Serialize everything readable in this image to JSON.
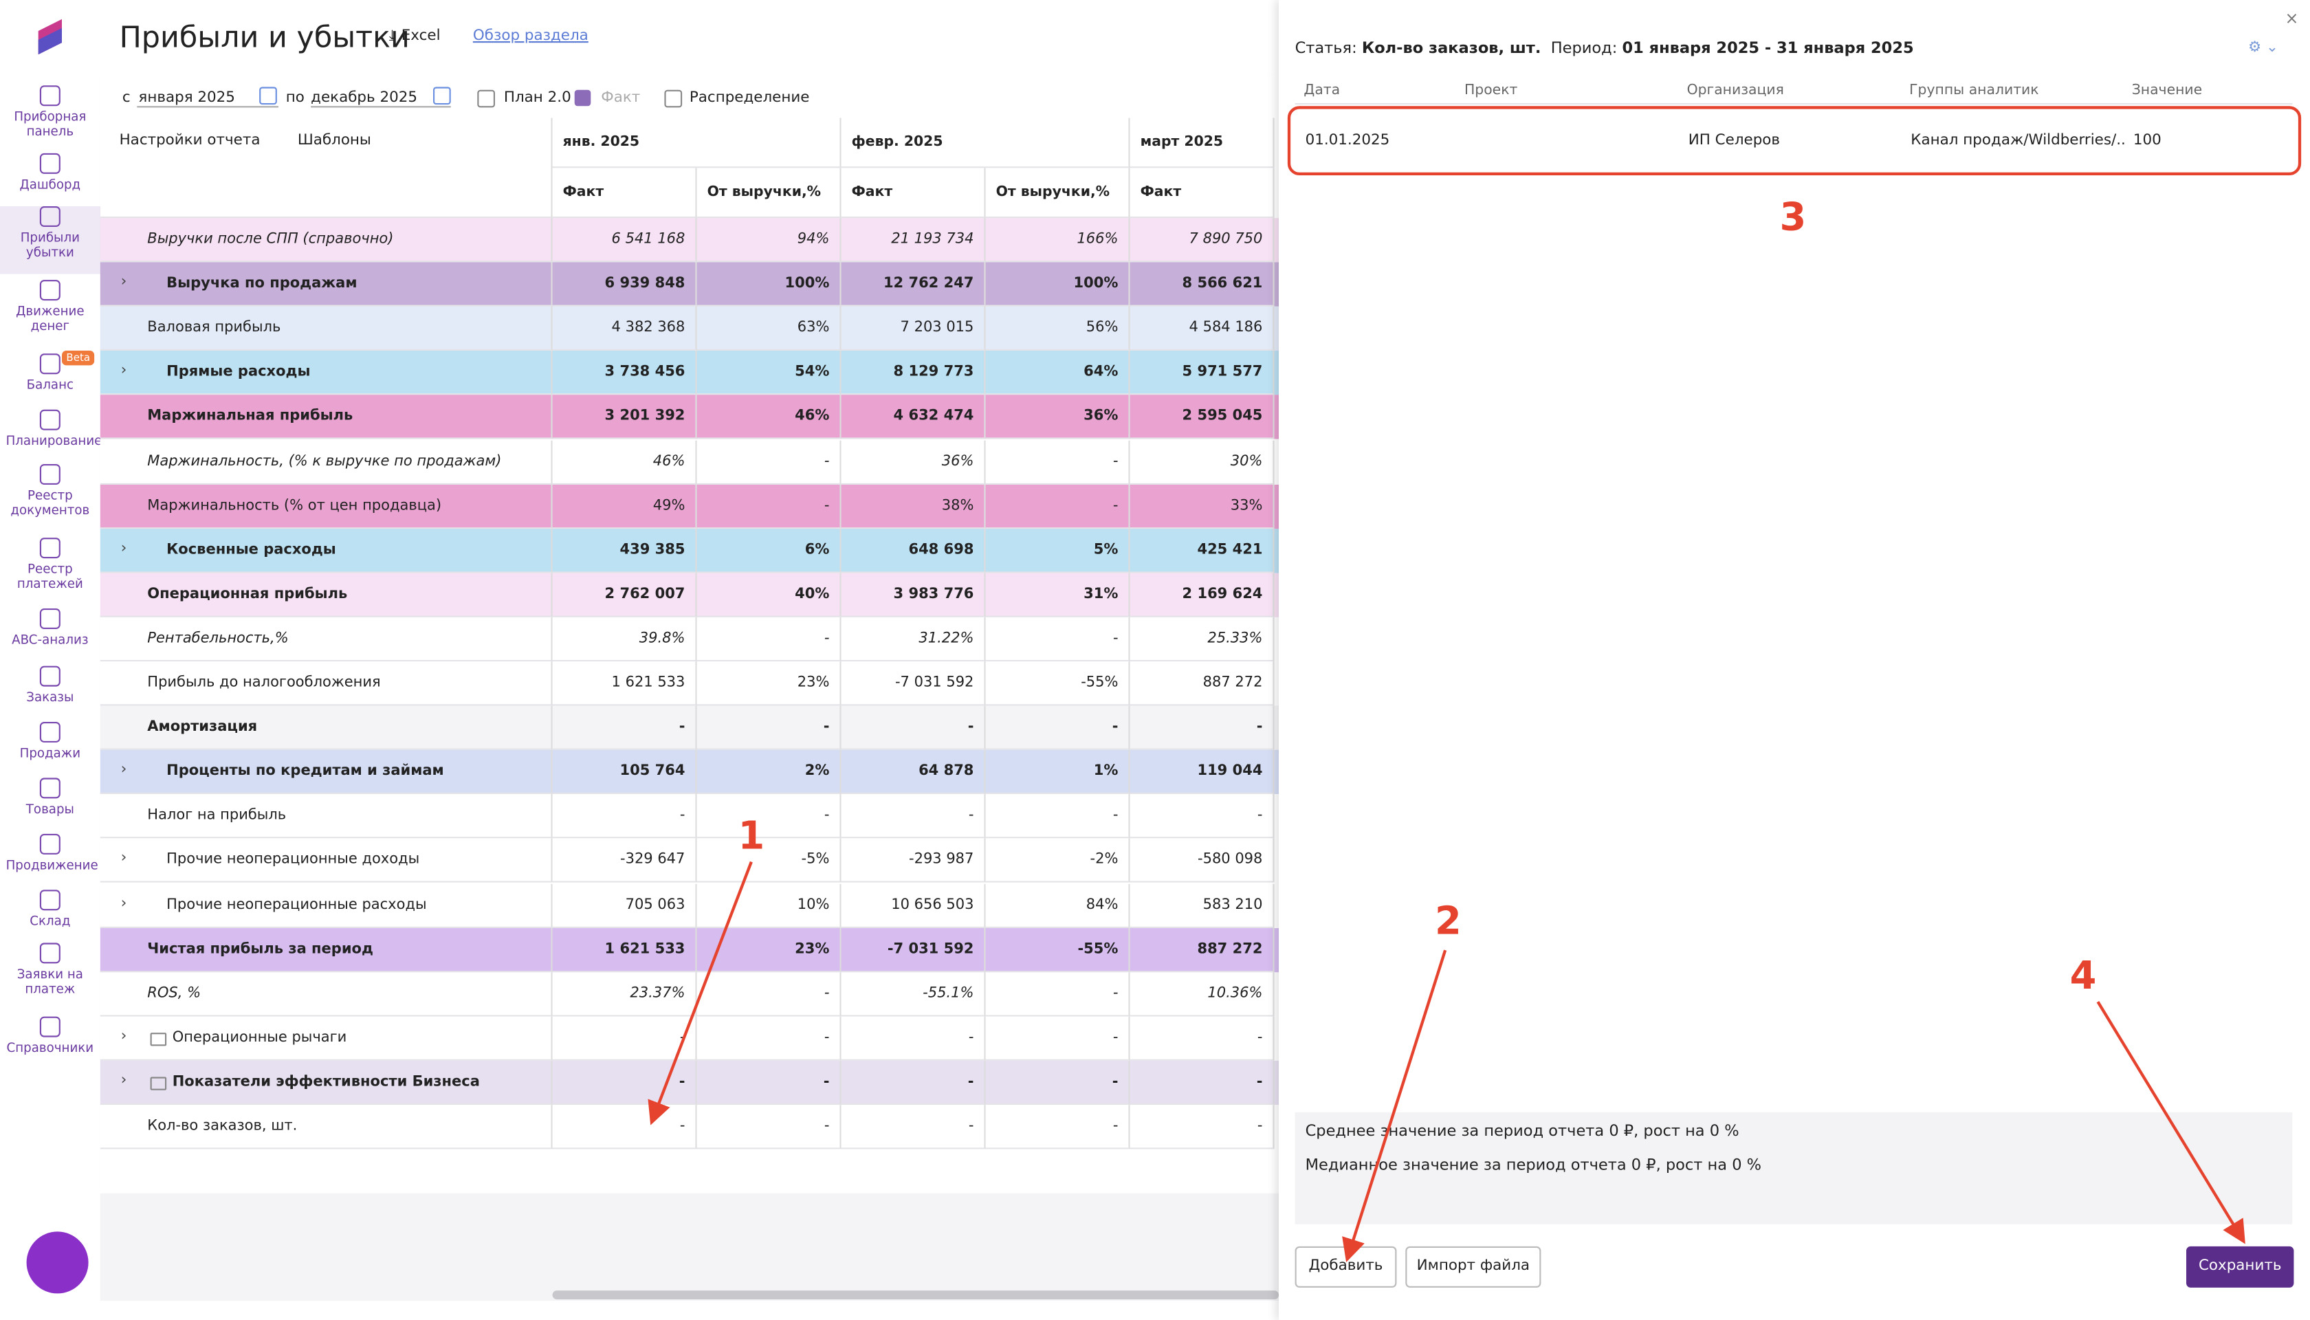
{
  "sidebar": {
    "items": [
      "Приборная панель",
      "Дашборд",
      "Прибыли убытки",
      "Движение денег",
      "Баланс",
      "Планирование",
      "Реестр документов",
      "Реестр платежей",
      "ABC-анализ",
      "Заказы",
      "Продажи",
      "Товары",
      "Продвижение",
      "Склад",
      "Заявки на платеж",
      "Справочники"
    ],
    "active": 2,
    "badge": "Beta",
    "badge_item": 4
  },
  "header": {
    "title": "Прибыли и убытки",
    "excel": "Excel",
    "overview": "Обзор раздела"
  },
  "filters": {
    "from_prefix": "с",
    "from": "января 2025",
    "to_prefix": "по",
    "to": "декабрь 2025",
    "plan": "План 2.0",
    "fact": "Факт",
    "distribution": "Распределение"
  },
  "toolbar": {
    "settings": "Настройки отчета",
    "templates": "Шаблоны"
  },
  "table": {
    "months": [
      "янв. 2025",
      "февр. 2025",
      "март 2025"
    ],
    "subheaders": [
      "Факт",
      "От выручки,%",
      "Факт",
      "От выручки,%",
      "Факт"
    ],
    "rows": [
      {
        "label": "Выручки после СПП (справочно)",
        "style": "italic",
        "bg": "#f7e1f4",
        "cells": [
          "6 541 168",
          "94%",
          "21 193 734",
          "166%",
          "7 890 750"
        ]
      },
      {
        "label": "Выручка по продажам",
        "style": "bold",
        "expand": true,
        "bg": "#c6afd8",
        "cells": [
          "6 939 848",
          "100%",
          "12 762 247",
          "100%",
          "8 566 621"
        ]
      },
      {
        "label": "Валовая прибыль",
        "style": "normal",
        "bg": "#e3eaf8",
        "cells": [
          "4 382 368",
          "63%",
          "7 203 015",
          "56%",
          "4 584 186"
        ]
      },
      {
        "label": "Прямые расходы",
        "style": "bold",
        "expand": true,
        "bg": "#bbe1f3",
        "cells": [
          "3 738 456",
          "54%",
          "8 129 773",
          "64%",
          "5 971 577"
        ]
      },
      {
        "label": "Маржинальная прибыль",
        "style": "bold",
        "bg": "#eaa2d1",
        "cells": [
          "3 201 392",
          "46%",
          "4 632 474",
          "36%",
          "2 595 045"
        ]
      },
      {
        "label": "Маржинальность, (% к выручке по продажам)",
        "style": "italic",
        "bg": "#ffffff",
        "cells": [
          "46%",
          "-",
          "36%",
          "-",
          "30%"
        ]
      },
      {
        "label": "Маржинальность (% от цен продавца)",
        "style": "normal",
        "bg": "#eaa2d1",
        "cells": [
          "49%",
          "-",
          "38%",
          "-",
          "33%"
        ]
      },
      {
        "label": "Косвенные расходы",
        "style": "bold",
        "expand": true,
        "bg": "#bbe1f3",
        "cells": [
          "439 385",
          "6%",
          "648 698",
          "5%",
          "425 421"
        ]
      },
      {
        "label": "Операционная прибыль",
        "style": "bold",
        "bg": "#f7e1f4",
        "cells": [
          "2 762 007",
          "40%",
          "3 983 776",
          "31%",
          "2 169 624"
        ]
      },
      {
        "label": "Рентабельность,%",
        "style": "italic",
        "bg": "#ffffff",
        "cells": [
          "39.8%",
          "-",
          "31.22%",
          "-",
          "25.33%"
        ]
      },
      {
        "label": "Прибыль до налогообложения",
        "style": "normal",
        "bg": "#ffffff",
        "cells": [
          "1 621 533",
          "23%",
          "-7 031 592",
          "-55%",
          "887 272"
        ]
      },
      {
        "label": "Амортизация",
        "style": "bold",
        "bg": "#f4f4f6",
        "cells": [
          "-",
          "-",
          "-",
          "-",
          "-"
        ]
      },
      {
        "label": "Проценты по кредитам и займам",
        "style": "bold",
        "expand": true,
        "bg": "#d5ddf4",
        "cells": [
          "105 764",
          "2%",
          "64 878",
          "1%",
          "119 044"
        ]
      },
      {
        "label": "Налог на прибыль",
        "style": "normal",
        "bg": "#ffffff",
        "cells": [
          "-",
          "-",
          "-",
          "-",
          "-"
        ]
      },
      {
        "label": "Прочие неоперационные доходы",
        "style": "normal",
        "expand": true,
        "bg": "#ffffff",
        "cells": [
          "-329 647",
          "-5%",
          "-293 987",
          "-2%",
          "-580 098"
        ]
      },
      {
        "label": "Прочие неоперационные расходы",
        "style": "normal",
        "expand": true,
        "bg": "#ffffff",
        "cells": [
          "705 063",
          "10%",
          "10 656 503",
          "84%",
          "583 210"
        ]
      },
      {
        "label": "Чистая прибыль за период",
        "style": "bold",
        "bg": "#d6bcef",
        "cells": [
          "1 621 533",
          "23%",
          "-7 031 592",
          "-55%",
          "887 272"
        ]
      },
      {
        "label": "ROS, %",
        "style": "italic",
        "bg": "#ffffff",
        "cells": [
          "23.37%",
          "-",
          "-55.1%",
          "-",
          "10.36%"
        ]
      },
      {
        "label": "Операционные рычаги",
        "style": "normal",
        "expand": true,
        "folder": true,
        "bg": "#ffffff",
        "cells": [
          "-",
          "-",
          "-",
          "-",
          "-"
        ]
      },
      {
        "label": "Показатели эффективности Бизнеса",
        "style": "bold",
        "expand": true,
        "folder": true,
        "bg": "#e7e0f1",
        "cells": [
          "-",
          "-",
          "-",
          "-",
          "-"
        ]
      },
      {
        "label": "Кол-во заказов, шт.",
        "style": "normal",
        "bg": "#ffffff",
        "cells": [
          "-",
          "-",
          "-",
          "-",
          "-"
        ]
      }
    ]
  },
  "panel": {
    "article_label": "Статья:",
    "article": "Кол-во заказов, шт.",
    "period_label": "Период:",
    "period": "01 января 2025 - 31 января 2025",
    "columns": [
      "Дата",
      "Проект",
      "Организация",
      "Группы аналитик",
      "Значение"
    ],
    "rows": [
      [
        "01.01.2025",
        "",
        "ИП Селеров",
        "Канал продаж/Wildberries/...",
        "100"
      ]
    ],
    "stats": [
      "Среднее значение за период отчета  0 ₽,  рост на 0 %",
      "Медианное значение за период отчета  0 ₽,  рост на 0 %"
    ],
    "add": "Добавить",
    "import": "Импорт файла",
    "save": "Сохранить"
  },
  "annotations": [
    "1",
    "2",
    "3",
    "4"
  ]
}
